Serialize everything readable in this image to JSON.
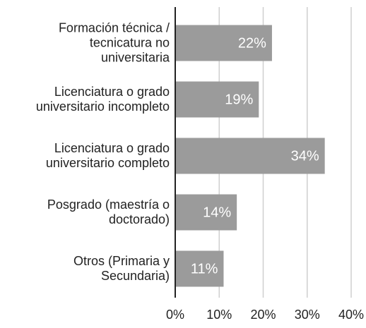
{
  "chart_data": {
    "type": "bar",
    "orientation": "horizontal",
    "categories": [
      "Formación técnica /\ntecnicatura no\nuniversitaria",
      "Licenciatura o grado\nuniversitario incompleto",
      "Licenciatura o grado\nuniversitario completo",
      "Posgrado (maestría o\ndoctorado)",
      "Otros (Primaria y\nSecundaria)"
    ],
    "values": [
      22,
      19,
      34,
      14,
      11
    ],
    "value_labels": [
      "22%",
      "19%",
      "34%",
      "14%",
      "11%"
    ],
    "color": "#9b9b9b",
    "xlim": [
      0,
      40
    ],
    "xticks": [
      {
        "value": 0,
        "label": "0%"
      },
      {
        "value": 10,
        "label": "10%"
      },
      {
        "value": 20,
        "label": "20%"
      },
      {
        "value": 30,
        "label": "30%"
      },
      {
        "value": 40,
        "label": "40%"
      }
    ],
    "grid": true
  }
}
